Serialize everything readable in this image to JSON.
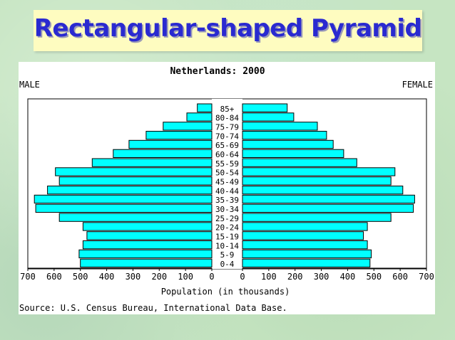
{
  "slide": {
    "title": "Rectangular-shaped Pyramid"
  },
  "chart_data": {
    "type": "bar",
    "title": "Netherlands: 2000",
    "left_label": "MALE",
    "right_label": "FEMALE",
    "xlabel": "Population (in thousands)",
    "source": "Source: U.S. Census Bureau, International Data Base.",
    "categories": [
      "85+",
      "80-84",
      "75-79",
      "70-74",
      "65-69",
      "60-64",
      "55-59",
      "50-54",
      "45-49",
      "40-44",
      "35-39",
      "30-34",
      "25-29",
      "20-24",
      "15-19",
      "10-14",
      "5-9",
      "0-4"
    ],
    "xlim": [
      0,
      700
    ],
    "ticks": [
      700,
      600,
      500,
      400,
      300,
      200,
      100,
      0
    ],
    "bar_color": "#00ffff",
    "series": [
      {
        "name": "MALE",
        "values": [
          55,
          95,
          185,
          250,
          315,
          375,
          455,
          595,
          580,
          625,
          675,
          670,
          580,
          490,
          475,
          490,
          505,
          500
        ]
      },
      {
        "name": "FEMALE",
        "values": [
          170,
          195,
          285,
          320,
          345,
          385,
          435,
          580,
          565,
          610,
          655,
          650,
          565,
          475,
          460,
          475,
          490,
          485
        ]
      }
    ]
  }
}
